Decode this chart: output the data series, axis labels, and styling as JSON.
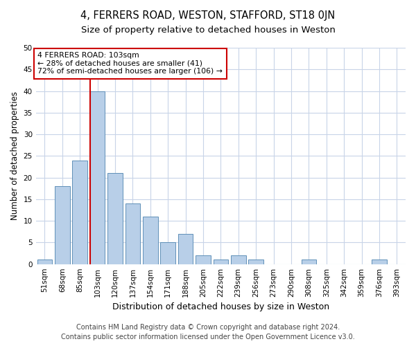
{
  "title": "4, FERRERS ROAD, WESTON, STAFFORD, ST18 0JN",
  "subtitle": "Size of property relative to detached houses in Weston",
  "xlabel": "Distribution of detached houses by size in Weston",
  "ylabel": "Number of detached properties",
  "categories": [
    "51sqm",
    "68sqm",
    "85sqm",
    "103sqm",
    "120sqm",
    "137sqm",
    "154sqm",
    "171sqm",
    "188sqm",
    "205sqm",
    "222sqm",
    "239sqm",
    "256sqm",
    "273sqm",
    "290sqm",
    "308sqm",
    "325sqm",
    "342sqm",
    "359sqm",
    "376sqm",
    "393sqm"
  ],
  "values": [
    1,
    18,
    24,
    40,
    21,
    14,
    11,
    5,
    7,
    2,
    1,
    2,
    1,
    0,
    0,
    1,
    0,
    0,
    0,
    1,
    0
  ],
  "bar_color": "#b8cfe8",
  "bar_edge_color": "#6090b8",
  "vline_index": 3,
  "vline_color": "#cc0000",
  "annotation_line1": "4 FERRERS ROAD: 103sqm",
  "annotation_line2": "← 28% of detached houses are smaller (41)",
  "annotation_line3": "72% of semi-detached houses are larger (106) →",
  "annotation_box_facecolor": "#ffffff",
  "annotation_box_edgecolor": "#cc0000",
  "ylim": [
    0,
    50
  ],
  "yticks": [
    0,
    5,
    10,
    15,
    20,
    25,
    30,
    35,
    40,
    45,
    50
  ],
  "footer_line1": "Contains HM Land Registry data © Crown copyright and database right 2024.",
  "footer_line2": "Contains public sector information licensed under the Open Government Licence v3.0.",
  "bg_color": "#ffffff",
  "grid_color": "#c8d4e8",
  "title_fontsize": 10.5,
  "subtitle_fontsize": 9.5,
  "ylabel_fontsize": 8.5,
  "xlabel_fontsize": 9,
  "tick_fontsize": 7.5,
  "annotation_fontsize": 7.8,
  "footer_fontsize": 7
}
